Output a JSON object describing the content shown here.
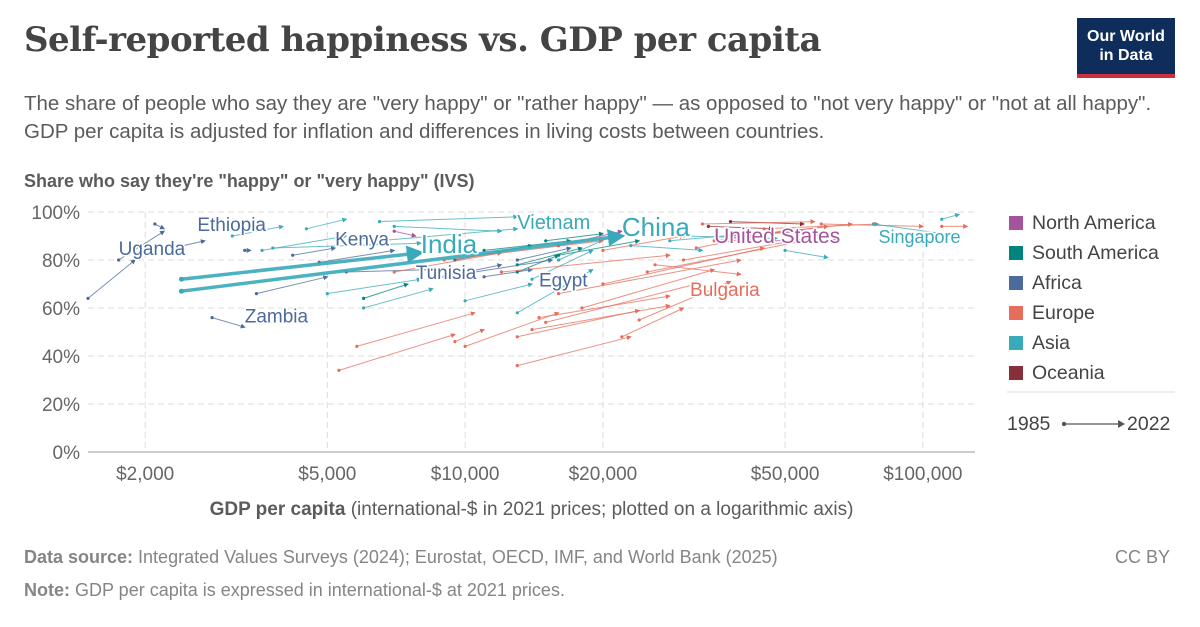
{
  "header": {
    "title": "Self-reported happiness vs. GDP per capita",
    "subtitle": "The share of people who say they are \"very happy\" or \"rather happy\" — as opposed to \"not very happy\" or \"not at all happy\". GDP per capita is adjusted for inflation and differences in living costs between countries.",
    "logo_line1": "Our World",
    "logo_line2": "in Data"
  },
  "footer": {
    "source_label": "Data source:",
    "source_text": " Integrated Values Surveys (2024); Eurostat, OECD, IMF, and World Bank (2025)",
    "note_label": "Note:",
    "note_text": " GDP per capita is expressed in international-$ at 2021 prices.",
    "license": "CC BY"
  },
  "colors": {
    "North America": "#a2559c",
    "South America": "#00847e",
    "Africa": "#4c6a9c",
    "Europe": "#e56e5a",
    "Asia": "#38aaba",
    "Oceania": "#883039"
  },
  "chart_data": {
    "type": "scatter",
    "title": "Self-reported happiness vs. GDP per capita",
    "ylabel": "Share who say they're \"happy\" or \"very happy\" (IVS)",
    "xlabel_bold": "GDP per capita",
    "xlabel_rest": " (international-$ in 2021 prices; plotted on a logarithmic axis)",
    "x_scale": "log",
    "xlim": [
      1500,
      130000
    ],
    "ylim": [
      0,
      100
    ],
    "x_ticks": [
      {
        "v": 2000,
        "label": "$2,000"
      },
      {
        "v": 5000,
        "label": "$5,000"
      },
      {
        "v": 10000,
        "label": "$10,000"
      },
      {
        "v": 20000,
        "label": "$20,000"
      },
      {
        "v": 50000,
        "label": "$50,000"
      },
      {
        "v": 100000,
        "label": "$100,000"
      }
    ],
    "y_ticks": [
      {
        "v": 0,
        "label": "0%"
      },
      {
        "v": 20,
        "label": "20%"
      },
      {
        "v": 40,
        "label": "40%"
      },
      {
        "v": 60,
        "label": "60%"
      },
      {
        "v": 80,
        "label": "80%"
      },
      {
        "v": 100,
        "label": "100%"
      }
    ],
    "grid": true,
    "legend_position": "right",
    "legend": [
      "North America",
      "South America",
      "Africa",
      "Europe",
      "Asia",
      "Oceania"
    ],
    "time_legend": {
      "start": "1985",
      "end": "2022"
    },
    "highlighted": [
      {
        "name": "China",
        "region": "Asia",
        "x0": 2400,
        "y0": 67,
        "x1": 22000,
        "y1": 90,
        "label_x": 22000,
        "label_y": 90,
        "size": 26
      },
      {
        "name": "India",
        "region": "Asia",
        "x0": 2400,
        "y0": 72,
        "x1": 8000,
        "y1": 83,
        "label_x": 8000,
        "label_y": 83,
        "size": 26
      },
      {
        "name": "Vietnam",
        "region": "Asia",
        "x0": 6500,
        "y0": 88,
        "x1": 13000,
        "y1": 93,
        "label_x": 13000,
        "label_y": 93,
        "size": 20
      },
      {
        "name": "Singapore",
        "region": "Asia",
        "x0": 78000,
        "y0": 95,
        "x1": 120000,
        "y1": 90,
        "label_x": 80000,
        "label_y": 87,
        "size": 18
      },
      {
        "name": "United States",
        "region": "North America",
        "x0": 42000,
        "y0": 88,
        "x1": 65000,
        "y1": 88,
        "label_x": 35000,
        "label_y": 87,
        "size": 21
      },
      {
        "name": "Ethiopia",
        "region": "Africa",
        "x0": 2300,
        "y0": 85,
        "x1": 2700,
        "y1": 88,
        "label_x": 2600,
        "label_y": 92,
        "size": 19
      },
      {
        "name": "Uganda",
        "region": "Africa",
        "x0": 1750,
        "y0": 80,
        "x1": 2200,
        "y1": 92,
        "label_x": 1750,
        "label_y": 82,
        "size": 19
      },
      {
        "name": "Kenya",
        "region": "Africa",
        "x0": 4200,
        "y0": 82,
        "x1": 5200,
        "y1": 85,
        "label_x": 5200,
        "label_y": 86,
        "size": 19
      },
      {
        "name": "Tunisia",
        "region": "Africa",
        "x0": 9000,
        "y0": 73,
        "x1": 12000,
        "y1": 78,
        "label_x": 7800,
        "label_y": 72,
        "size": 19
      },
      {
        "name": "Egypt",
        "region": "Africa",
        "x0": 10500,
        "y0": 75,
        "x1": 15500,
        "y1": 80,
        "label_x": 14500,
        "label_y": 69,
        "size": 19
      },
      {
        "name": "Zambia",
        "region": "Africa",
        "x0": 2800,
        "y0": 56,
        "x1": 3300,
        "y1": 52,
        "label_x": 3300,
        "label_y": 54,
        "size": 19
      },
      {
        "name": "Bulgaria",
        "region": "Europe",
        "x0": 14000,
        "y0": 51,
        "x1": 28000,
        "y1": 61,
        "label_x": 31000,
        "label_y": 65,
        "size": 19
      }
    ],
    "paths": [
      {
        "region": "Africa",
        "x0": 1500,
        "y0": 64,
        "x1": 1900,
        "y1": 80
      },
      {
        "region": "Africa",
        "x0": 3500,
        "y0": 66,
        "x1": 5000,
        "y1": 73
      },
      {
        "region": "Africa",
        "x0": 4800,
        "y0": 79,
        "x1": 7000,
        "y1": 84
      },
      {
        "region": "Africa",
        "x0": 5500,
        "y0": 75,
        "x1": 8500,
        "y1": 76
      },
      {
        "region": "Africa",
        "x0": 11000,
        "y0": 73,
        "x1": 14000,
        "y1": 76
      },
      {
        "region": "Africa",
        "x0": 13000,
        "y0": 80,
        "x1": 17000,
        "y1": 85
      },
      {
        "region": "Africa",
        "x0": 2100,
        "y0": 95,
        "x1": 2200,
        "y1": 93
      },
      {
        "region": "Africa",
        "x0": 3300,
        "y0": 84,
        "x1": 3400,
        "y1": 84
      },
      {
        "region": "Africa",
        "x0": 6200,
        "y0": 90,
        "x1": 6000,
        "y1": 89
      },
      {
        "region": "South America",
        "x0": 6000,
        "y0": 64,
        "x1": 7500,
        "y1": 70
      },
      {
        "region": "South America",
        "x0": 9500,
        "y0": 80,
        "x1": 14000,
        "y1": 86
      },
      {
        "region": "South America",
        "x0": 11000,
        "y0": 84,
        "x1": 17000,
        "y1": 88
      },
      {
        "region": "South America",
        "x0": 13000,
        "y0": 78,
        "x1": 18000,
        "y1": 85
      },
      {
        "region": "South America",
        "x0": 15000,
        "y0": 88,
        "x1": 20000,
        "y1": 91
      },
      {
        "region": "South America",
        "x0": 16000,
        "y0": 82,
        "x1": 24000,
        "y1": 88
      },
      {
        "region": "South America",
        "x0": 13000,
        "y0": 75,
        "x1": 16000,
        "y1": 82
      },
      {
        "region": "North America",
        "x0": 7000,
        "y0": 92,
        "x1": 7800,
        "y1": 90
      },
      {
        "region": "North America",
        "x0": 16000,
        "y0": 86,
        "x1": 22000,
        "y1": 92
      },
      {
        "region": "North America",
        "x0": 38000,
        "y0": 90,
        "x1": 55000,
        "y1": 92
      },
      {
        "region": "Oceania",
        "x0": 38000,
        "y0": 96,
        "x1": 55000,
        "y1": 95
      },
      {
        "region": "Oceania",
        "x0": 34000,
        "y0": 94,
        "x1": 47000,
        "y1": 93
      },
      {
        "region": "Asia",
        "x0": 3600,
        "y0": 84,
        "x1": 5500,
        "y1": 90
      },
      {
        "region": "Asia",
        "x0": 4500,
        "y0": 93,
        "x1": 5500,
        "y1": 97
      },
      {
        "region": "Asia",
        "x0": 3800,
        "y0": 85,
        "x1": 8000,
        "y1": 87
      },
      {
        "region": "Asia",
        "x0": 6500,
        "y0": 96,
        "x1": 13000,
        "y1": 98
      },
      {
        "region": "Asia",
        "x0": 7000,
        "y0": 94,
        "x1": 12000,
        "y1": 92
      },
      {
        "region": "Asia",
        "x0": 6000,
        "y0": 60,
        "x1": 8500,
        "y1": 68
      },
      {
        "region": "Asia",
        "x0": 5000,
        "y0": 66,
        "x1": 8000,
        "y1": 72
      },
      {
        "region": "Asia",
        "x0": 10000,
        "y0": 63,
        "x1": 14000,
        "y1": 70
      },
      {
        "region": "Asia",
        "x0": 13000,
        "y0": 58,
        "x1": 19000,
        "y1": 76
      },
      {
        "region": "Asia",
        "x0": 14000,
        "y0": 72,
        "x1": 19000,
        "y1": 84
      },
      {
        "region": "Asia",
        "x0": 16000,
        "y0": 80,
        "x1": 21000,
        "y1": 90
      },
      {
        "region": "Asia",
        "x0": 23000,
        "y0": 86,
        "x1": 33000,
        "y1": 84
      },
      {
        "region": "Asia",
        "x0": 28000,
        "y0": 88,
        "x1": 42000,
        "y1": 91
      },
      {
        "region": "Asia",
        "x0": 30000,
        "y0": 90,
        "x1": 48000,
        "y1": 89
      },
      {
        "region": "Asia",
        "x0": 50000,
        "y0": 84,
        "x1": 62000,
        "y1": 81
      },
      {
        "region": "Asia",
        "x0": 110000,
        "y0": 97,
        "x1": 120000,
        "y1": 99
      },
      {
        "region": "Asia",
        "x0": 3100,
        "y0": 90,
        "x1": 4000,
        "y1": 94
      },
      {
        "region": "Europe",
        "x0": 5300,
        "y0": 34,
        "x1": 9500,
        "y1": 49
      },
      {
        "region": "Europe",
        "x0": 5800,
        "y0": 44,
        "x1": 10500,
        "y1": 58
      },
      {
        "region": "Europe",
        "x0": 9500,
        "y0": 46,
        "x1": 11000,
        "y1": 51
      },
      {
        "region": "Europe",
        "x0": 10000,
        "y0": 44,
        "x1": 16000,
        "y1": 58
      },
      {
        "region": "Europe",
        "x0": 13000,
        "y0": 36,
        "x1": 23000,
        "y1": 48
      },
      {
        "region": "Europe",
        "x0": 13000,
        "y0": 48,
        "x1": 24000,
        "y1": 59
      },
      {
        "region": "Europe",
        "x0": 14500,
        "y0": 56,
        "x1": 28000,
        "y1": 65
      },
      {
        "region": "Europe",
        "x0": 15000,
        "y0": 54,
        "x1": 32000,
        "y1": 70
      },
      {
        "region": "Europe",
        "x0": 18000,
        "y0": 60,
        "x1": 35000,
        "y1": 76
      },
      {
        "region": "Europe",
        "x0": 22000,
        "y0": 48,
        "x1": 30000,
        "y1": 60
      },
      {
        "region": "Europe",
        "x0": 24000,
        "y0": 55,
        "x1": 38000,
        "y1": 71
      },
      {
        "region": "Europe",
        "x0": 16000,
        "y0": 66,
        "x1": 40000,
        "y1": 80
      },
      {
        "region": "Europe",
        "x0": 20000,
        "y0": 70,
        "x1": 45000,
        "y1": 85
      },
      {
        "region": "Europe",
        "x0": 25000,
        "y0": 75,
        "x1": 55000,
        "y1": 88
      },
      {
        "region": "Europe",
        "x0": 30000,
        "y0": 80,
        "x1": 60000,
        "y1": 90
      },
      {
        "region": "Europe",
        "x0": 35000,
        "y0": 88,
        "x1": 62000,
        "y1": 94
      },
      {
        "region": "Europe",
        "x0": 40000,
        "y0": 90,
        "x1": 70000,
        "y1": 95
      },
      {
        "region": "Europe",
        "x0": 45000,
        "y0": 93,
        "x1": 80000,
        "y1": 95
      },
      {
        "region": "Europe",
        "x0": 33000,
        "y0": 95,
        "x1": 58000,
        "y1": 96
      },
      {
        "region": "Europe",
        "x0": 7000,
        "y0": 75,
        "x1": 12000,
        "y1": 83
      },
      {
        "region": "Europe",
        "x0": 9000,
        "y0": 80,
        "x1": 20000,
        "y1": 88
      },
      {
        "region": "Europe",
        "x0": 12000,
        "y0": 75,
        "x1": 28000,
        "y1": 82
      },
      {
        "region": "Europe",
        "x0": 26000,
        "y0": 78,
        "x1": 40000,
        "y1": 74
      },
      {
        "region": "Europe",
        "x0": 32000,
        "y0": 85,
        "x1": 52000,
        "y1": 93
      },
      {
        "region": "Europe",
        "x0": 60000,
        "y0": 95,
        "x1": 100000,
        "y1": 94
      },
      {
        "region": "Europe",
        "x0": 110000,
        "y0": 94,
        "x1": 125000,
        "y1": 94
      },
      {
        "region": "Europe",
        "x0": 20000,
        "y0": 84,
        "x1": 30000,
        "y1": 90
      }
    ]
  }
}
